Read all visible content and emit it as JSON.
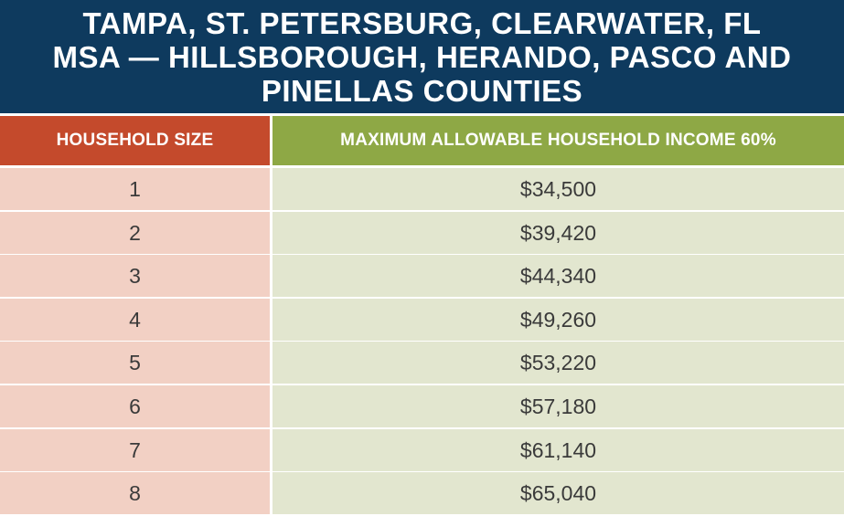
{
  "title": {
    "line1": "TAMPA, ST. PETERSBURG, CLEARWATER, FL",
    "line2": "MSA — HILLSBOROUGH, HERANDO, PASCO AND",
    "line3": "PINELLAS COUNTIES"
  },
  "colors": {
    "title_bg": "#0e3a5e",
    "left_header_bg": "#c44a2c",
    "right_header_bg": "#8ea845",
    "left_cell_bg": "#f2d0c4",
    "right_cell_bg": "#e2e6cf"
  },
  "chart_data": {
    "type": "table",
    "columns": [
      "HOUSEHOLD SIZE",
      "MAXIMUM ALLOWABLE HOUSEHOLD INCOME 60%"
    ],
    "rows": [
      [
        "1",
        "$34,500"
      ],
      [
        "2",
        "$39,420"
      ],
      [
        "3",
        "$44,340"
      ],
      [
        "4",
        "$49,260"
      ],
      [
        "5",
        "$53,220"
      ],
      [
        "6",
        "$57,180"
      ],
      [
        "7",
        "$61,140"
      ],
      [
        "8",
        "$65,040"
      ]
    ]
  }
}
